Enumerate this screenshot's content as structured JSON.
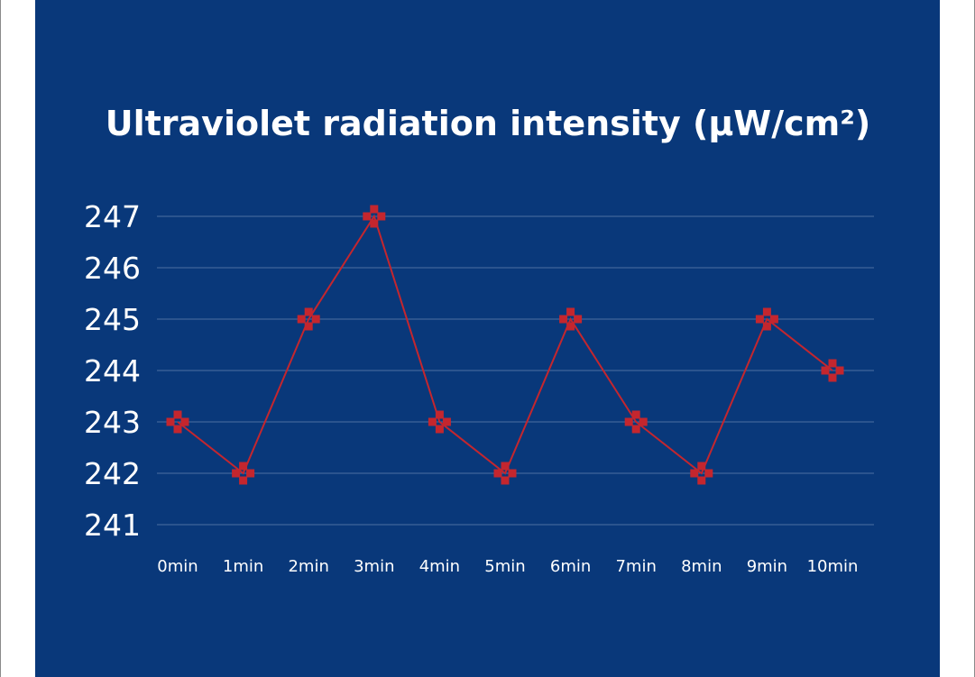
{
  "chart_data": {
    "type": "line",
    "title": "Ultraviolet radiation intensity (µW/cm²)",
    "xlabel": "",
    "ylabel": "",
    "categories": [
      "0min",
      "1min",
      "2min",
      "3min",
      "4min",
      "5min",
      "6min",
      "7min",
      "8min",
      "9min",
      "10min"
    ],
    "series": [
      {
        "name": "Ultraviolet radiation intensity",
        "values": [
          243,
          242,
          245,
          247,
          243,
          242,
          245,
          243,
          242,
          245,
          244
        ]
      }
    ],
    "yticks": [
      "241",
      "242",
      "243",
      "244",
      "245",
      "246",
      "247"
    ],
    "ylim": [
      241,
      247
    ],
    "grid": true,
    "legend": "none",
    "colors": {
      "background": "#09387a",
      "series": "#c4262e",
      "text": "#ffffff",
      "grid": "#4d6fa3"
    }
  }
}
